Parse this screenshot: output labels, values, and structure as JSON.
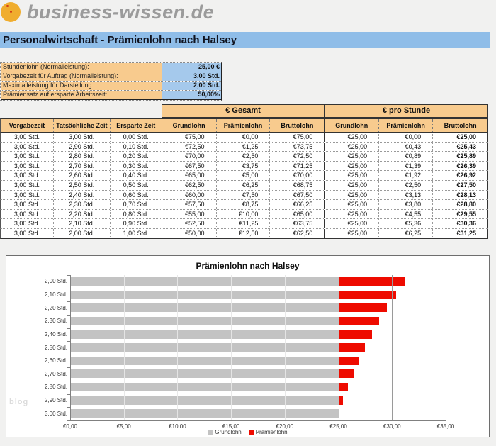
{
  "brand": {
    "name": "business-wissen.de"
  },
  "title_bar": {
    "text": "Personalwirtschaft - Prämienlohn nach Halsey",
    "bg": "#8fbde8"
  },
  "inputs": {
    "rows": [
      {
        "label": "Stundenlohn (Normalleistung):",
        "value": "25,00 €"
      },
      {
        "label": "Vorgabezeit für Auftrag (Normalleistung):",
        "value": "3,00 Std."
      },
      {
        "label": "Maximalleistung für Darstellung:",
        "value": "2,00 Std."
      },
      {
        "label": "Prämiensatz auf ersparte Arbeitszeit:",
        "value": "50,00%"
      }
    ]
  },
  "table": {
    "group_headers": [
      {
        "label": "€ Gesamt"
      },
      {
        "label": "€ pro Stunde"
      }
    ],
    "columns": [
      "Vorgabezeit",
      "Tatsächliche Zeit",
      "Ersparte Zeit",
      "Grundlohn",
      "Prämienlohn",
      "Bruttolohn",
      "Grundlohn",
      "Prämienlohn",
      "Bruttolohn"
    ],
    "rows": [
      [
        "3,00 Std.",
        "3,00 Std.",
        "0,00 Std.",
        "€75,00",
        "€0,00",
        "€75,00",
        "€25,00",
        "€0,00",
        "€25,00"
      ],
      [
        "3,00 Std.",
        "2,90 Std.",
        "0,10 Std.",
        "€72,50",
        "€1,25",
        "€73,75",
        "€25,00",
        "€0,43",
        "€25,43"
      ],
      [
        "3,00 Std.",
        "2,80 Std.",
        "0,20 Std.",
        "€70,00",
        "€2,50",
        "€72,50",
        "€25,00",
        "€0,89",
        "€25,89"
      ],
      [
        "3,00 Std.",
        "2,70 Std.",
        "0,30 Std.",
        "€67,50",
        "€3,75",
        "€71,25",
        "€25,00",
        "€1,39",
        "€26,39"
      ],
      [
        "3,00 Std.",
        "2,60 Std.",
        "0,40 Std.",
        "€65,00",
        "€5,00",
        "€70,00",
        "€25,00",
        "€1,92",
        "€26,92"
      ],
      [
        "3,00 Std.",
        "2,50 Std.",
        "0,50 Std.",
        "€62,50",
        "€6,25",
        "€68,75",
        "€25,00",
        "€2,50",
        "€27,50"
      ],
      [
        "3,00 Std.",
        "2,40 Std.",
        "0,60 Std.",
        "€60,00",
        "€7,50",
        "€67,50",
        "€25,00",
        "€3,13",
        "€28,13"
      ],
      [
        "3,00 Std.",
        "2,30 Std.",
        "0,70 Std.",
        "€57,50",
        "€8,75",
        "€66,25",
        "€25,00",
        "€3,80",
        "€28,80"
      ],
      [
        "3,00 Std.",
        "2,20 Std.",
        "0,80 Std.",
        "€55,00",
        "€10,00",
        "€65,00",
        "€25,00",
        "€4,55",
        "€29,55"
      ],
      [
        "3,00 Std.",
        "2,10 Std.",
        "0,90 Std.",
        "€52,50",
        "€11,25",
        "€63,75",
        "€25,00",
        "€5,36",
        "€30,36"
      ],
      [
        "3,00 Std.",
        "2,00 Std.",
        "1,00 Std.",
        "€50,00",
        "€12,50",
        "€62,50",
        "€25,00",
        "€6,25",
        "€31,25"
      ]
    ]
  },
  "chart_data": {
    "type": "bar",
    "orientation": "horizontal",
    "stacked": true,
    "title": "Prämienlohn nach Halsey",
    "categories": [
      "2,00 Std.",
      "2,10 Std.",
      "2,20 Std.",
      "2,30 Std.",
      "2,40 Std.",
      "2,50 Std.",
      "2,60 Std.",
      "2,70 Std.",
      "2,80 Std.",
      "2,90 Std.",
      "3,00 Std."
    ],
    "series": [
      {
        "name": "Grundlohn",
        "color": "#c3c3c3",
        "values": [
          25.0,
          25.0,
          25.0,
          25.0,
          25.0,
          25.0,
          25.0,
          25.0,
          25.0,
          25.0,
          25.0
        ]
      },
      {
        "name": "Prämienlohn",
        "color": "#ee0b00",
        "values": [
          6.25,
          5.36,
          4.55,
          3.8,
          3.13,
          2.5,
          1.92,
          1.39,
          0.89,
          0.43,
          0.0
        ]
      }
    ],
    "xlim": [
      0,
      35
    ],
    "xtick_step": 5,
    "xtick_labels": [
      "€0,00",
      "€5,00",
      "€10,00",
      "€15,00",
      "€20,00",
      "€25,00",
      "€30,00",
      "€35,00"
    ],
    "grid": true,
    "legend_position": "bottom",
    "watermark": "blog"
  },
  "colors": {
    "accent_orange": "#f8cb8e",
    "accent_blue": "#a5c9ec",
    "titlebar_blue": "#8fbde8",
    "logo_orange": "#f0ad2e",
    "bar_gray": "#c3c3c3",
    "bar_red": "#ee0b00"
  }
}
